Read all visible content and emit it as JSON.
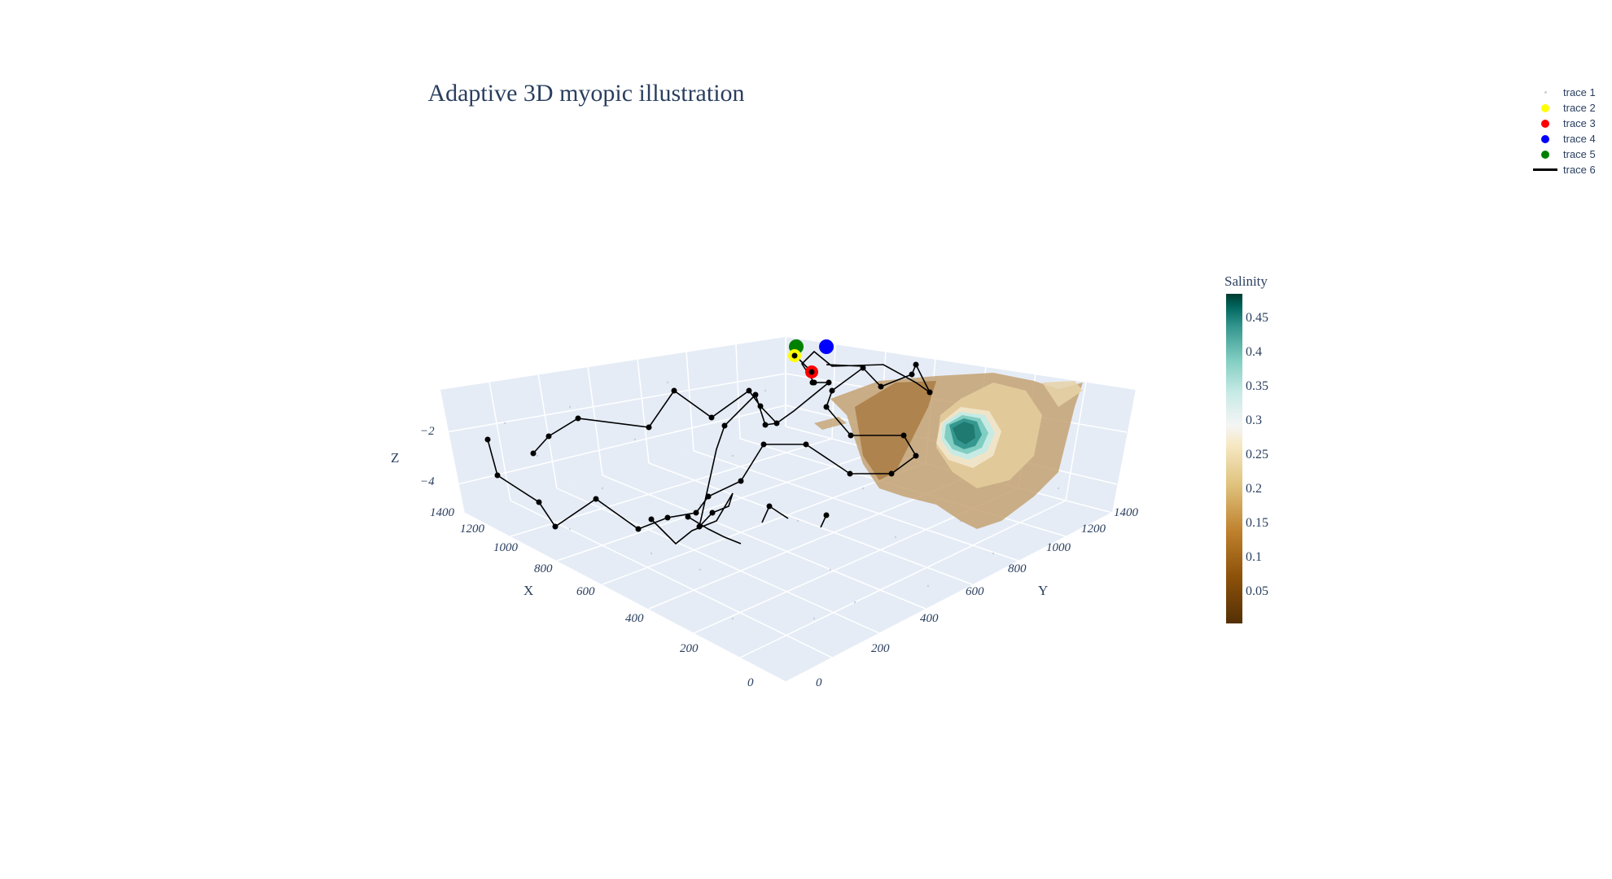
{
  "chart_data": {
    "type": "scatter3d",
    "title": "Adaptive 3D myopic illustration",
    "axes": {
      "x": {
        "label": "X",
        "ticks": [
          "0",
          "200",
          "400",
          "600",
          "800",
          "1000",
          "1200",
          "1400"
        ],
        "range": [
          0,
          1400
        ]
      },
      "y": {
        "label": "Y",
        "ticks": [
          "0",
          "200",
          "400",
          "600",
          "800",
          "1000",
          "1200",
          "1400"
        ],
        "range": [
          0,
          1400
        ]
      },
      "z": {
        "label": "Z",
        "ticks": [
          "−2",
          "−4"
        ]
      }
    },
    "colorbar": {
      "title": "Salinity",
      "ticks": [
        "0.05",
        "0.1",
        "0.15",
        "0.2",
        "0.25",
        "0.3",
        "0.35",
        "0.4",
        "0.45"
      ],
      "range": [
        0,
        0.48
      ]
    },
    "legend": {
      "placement": "top-right",
      "entries": [
        {
          "name": "trace 1",
          "color": "#c8d0dc",
          "kind": "tiny"
        },
        {
          "name": "trace 2",
          "color": "#ffff00",
          "kind": "dot"
        },
        {
          "name": "trace 3",
          "color": "#ff0000",
          "kind": "dot"
        },
        {
          "name": "trace 4",
          "color": "#0000ff",
          "kind": "dot"
        },
        {
          "name": "trace 5",
          "color": "#008000",
          "kind": "dot"
        },
        {
          "name": "trace 6",
          "color": "#000000",
          "kind": "line"
        }
      ]
    },
    "markers": [
      {
        "trace": "trace 5",
        "color": "#008000",
        "x": 1400,
        "y": 1400,
        "z": -1
      },
      {
        "trace": "trace 2",
        "color": "#ffff00",
        "x": 1360,
        "y": 1380,
        "z": -1.3
      },
      {
        "trace": "trace 4",
        "color": "#0000ff",
        "x": 1400,
        "y": 1250,
        "z": -0.9
      },
      {
        "trace": "trace 3",
        "color": "#ff0000",
        "x": 1300,
        "y": 1250,
        "z": -1.4
      }
    ]
  }
}
